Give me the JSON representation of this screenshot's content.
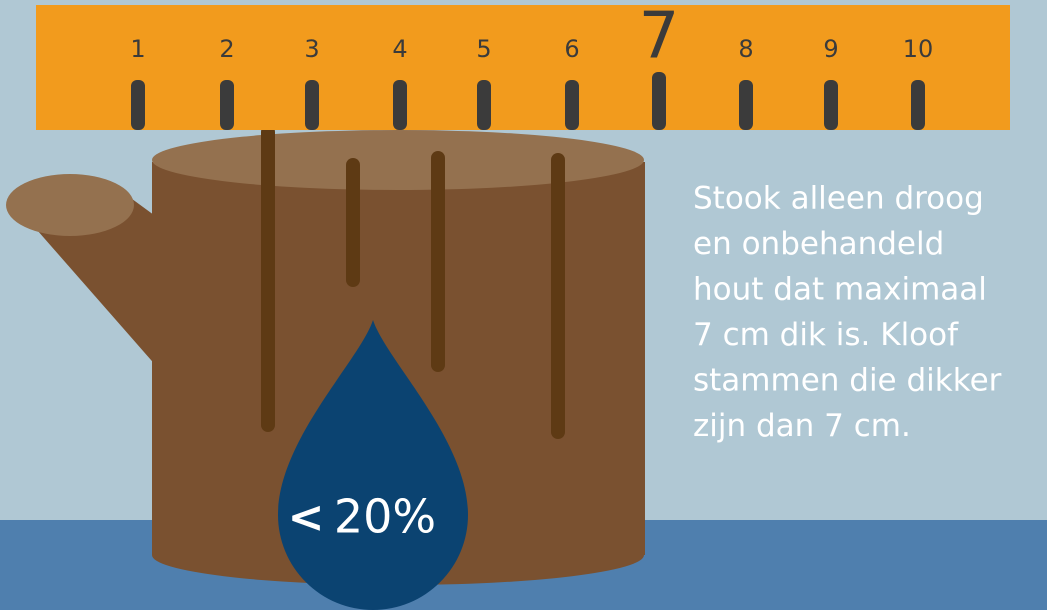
{
  "ruler": {
    "labels": [
      "1",
      "2",
      "3",
      "4",
      "5",
      "6",
      "7",
      "8",
      "9",
      "10"
    ]
  },
  "drop": {
    "symbol": "<",
    "value": "20%"
  },
  "text": {
    "lines": [
      "Stook alleen droog",
      "en onbehandeld",
      "hout dat maximaal",
      "7 cm dik is. Kloof",
      "stammen die dikker",
      "zijn dan 7 cm."
    ]
  }
}
